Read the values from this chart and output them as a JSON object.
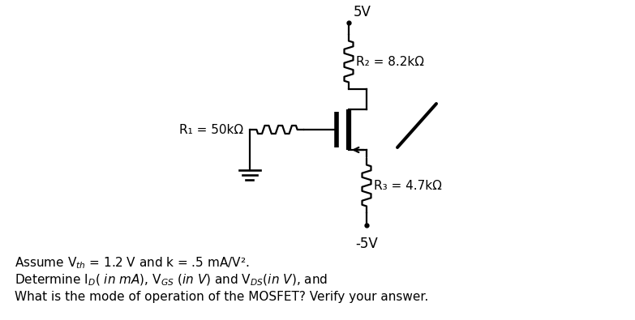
{
  "bg_color": "#ffffff",
  "vdd_label": "5V",
  "vss_label": "-5V",
  "R1_label": "R₁ = 50kΩ",
  "R2_label": "R₂ = 8.2kΩ",
  "R3_label": "R₃ = 4.7kΩ",
  "line_color": "#000000",
  "lw": 1.6,
  "font_size_circuit": 11,
  "font_size_text": 11,
  "text_line1": "Assume V$_{th}$ = 1.2 V and k = .5 mA/V².",
  "text_line2": "Determine I$_{D}$( $\\it{in}$ $\\it{mA}$), V$_{GS}$ ($\\it{in}$ $\\it{V}$) and V$_{DS}$($\\it{in}$ $\\it{V}$), and",
  "text_line3": "What is the mode of operation of the MOSFET? Verify your answer."
}
